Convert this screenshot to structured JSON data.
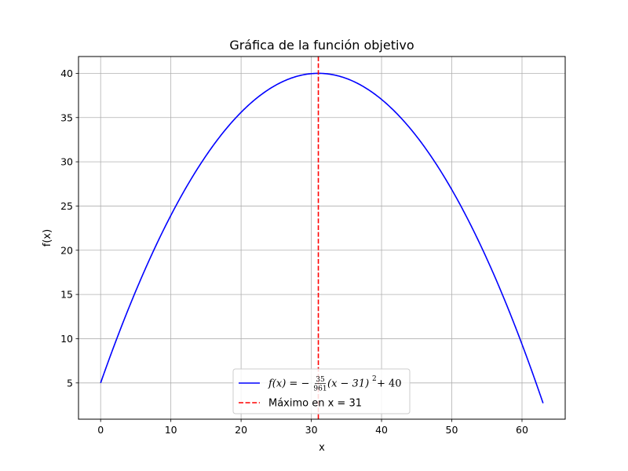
{
  "chart_data": {
    "type": "line",
    "title": "Gráfica de la función objetivo",
    "xlabel": "x",
    "ylabel": "f(x)",
    "xlim": [
      -3.15,
      66.15
    ],
    "ylim": [
      0.9,
      41.9
    ],
    "xticks": [
      0,
      10,
      20,
      30,
      40,
      50,
      60
    ],
    "yticks": [
      5,
      10,
      15,
      20,
      25,
      30,
      35,
      40
    ],
    "grid": true,
    "legend_position": "lower center",
    "function": {
      "a": -0.036420395421436,
      "h": 31,
      "k": 40,
      "x_start": 0,
      "x_end": 63
    },
    "series": [
      {
        "name": "f(x) = −(35/961)(x − 31)² + 40",
        "kind": "curve",
        "color": "#0000ff",
        "x": [
          0,
          5,
          10,
          15,
          20,
          25,
          31,
          35,
          40,
          45,
          50,
          55,
          60,
          63
        ],
        "y": [
          5.0,
          15.38,
          23.94,
          30.68,
          35.59,
          38.69,
          40.0,
          39.42,
          37.05,
          32.86,
          26.85,
          19.02,
          9.37,
          2.71
        ]
      },
      {
        "name": "Máximo en x = 31",
        "kind": "vline",
        "color": "#ff0000",
        "x": 31,
        "dashed": true
      }
    ],
    "legend": {
      "entries": [
        {
          "color": "#0000ff",
          "dashed": false,
          "math": {
            "lhs": "f(x) = −",
            "num": "35",
            "den": "961",
            "rhs": "(x − 31)",
            "exp": "2",
            "tail": " + 40"
          }
        },
        {
          "color": "#ff0000",
          "dashed": true,
          "text": "Máximo en x = 31"
        }
      ]
    }
  }
}
